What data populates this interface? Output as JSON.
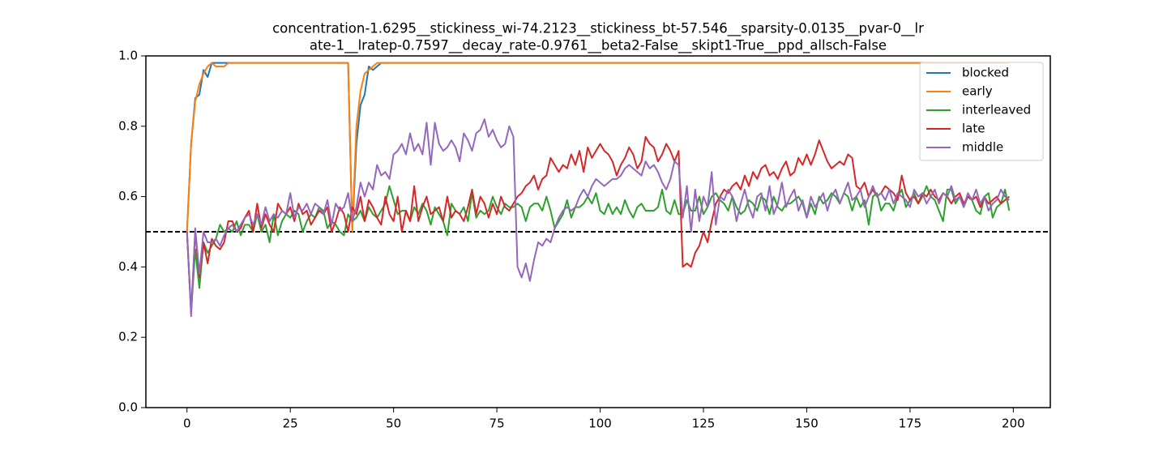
{
  "chart_data": {
    "type": "line",
    "title": [
      "concentration-1.6295__stickiness_wi-74.2123__stickiness_bt-57.546__sparsity-0.0135__pvar-0__lr",
      "ate-1__lratep-0.7597__decay_rate-0.9761__beta2-False__skipt1-True__ppd_allsch-False"
    ],
    "x": [
      0,
      1,
      2,
      3,
      4,
      5,
      6,
      7,
      8,
      9,
      10,
      11,
      12,
      13,
      14,
      15,
      16,
      17,
      18,
      19,
      20,
      21,
      22,
      23,
      24,
      25,
      26,
      27,
      28,
      29,
      30,
      31,
      32,
      33,
      34,
      35,
      36,
      37,
      38,
      39,
      40,
      41,
      42,
      43,
      44,
      45,
      46,
      47,
      48,
      49,
      50,
      51,
      52,
      53,
      54,
      55,
      56,
      57,
      58,
      59,
      60,
      61,
      62,
      63,
      64,
      65,
      66,
      67,
      68,
      69,
      70,
      71,
      72,
      73,
      74,
      75,
      76,
      77,
      78,
      79,
      80,
      81,
      82,
      83,
      84,
      85,
      86,
      87,
      88,
      89,
      90,
      91,
      92,
      93,
      94,
      95,
      96,
      97,
      98,
      99,
      100,
      101,
      102,
      103,
      104,
      105,
      106,
      107,
      108,
      109,
      110,
      111,
      112,
      113,
      114,
      115,
      116,
      117,
      118,
      119,
      120,
      121,
      122,
      123,
      124,
      125,
      126,
      127,
      128,
      129,
      130,
      131,
      132,
      133,
      134,
      135,
      136,
      137,
      138,
      139,
      140,
      141,
      142,
      143,
      144,
      145,
      146,
      147,
      148,
      149,
      150,
      151,
      152,
      153,
      154,
      155,
      156,
      157,
      158,
      159,
      160,
      161,
      162,
      163,
      164,
      165,
      166,
      167,
      168,
      169,
      170,
      171,
      172,
      173,
      174,
      175,
      176,
      177,
      178,
      179,
      180,
      181,
      182,
      183,
      184,
      185,
      186,
      187,
      188,
      189,
      190,
      191,
      192,
      193,
      194,
      195,
      196,
      197,
      198,
      199
    ],
    "series": [
      {
        "name": "blocked",
        "color": "#1f77b4",
        "values": [
          0.5,
          0.75,
          0.88,
          0.89,
          0.96,
          0.94,
          0.98,
          0.98,
          0.98,
          0.98,
          0.98,
          0.98,
          0.98,
          0.98,
          0.98,
          0.98,
          0.98,
          0.98,
          0.98,
          0.98,
          0.98,
          0.98,
          0.98,
          0.98,
          0.98,
          0.98,
          0.98,
          0.98,
          0.98,
          0.98,
          0.98,
          0.98,
          0.98,
          0.98,
          0.98,
          0.98,
          0.98,
          0.98,
          0.98,
          0.98,
          0.5,
          0.75,
          0.86,
          0.89,
          0.97,
          0.96,
          0.97,
          0.98,
          0.98,
          0.98,
          0.98,
          0.98,
          0.98,
          0.98,
          0.98,
          0.98,
          0.98,
          0.98,
          0.98,
          0.98,
          0.98,
          0.98,
          0.98,
          0.98,
          0.98,
          0.98,
          0.98,
          0.98,
          0.98,
          0.98,
          0.98,
          0.98,
          0.98,
          0.98,
          0.98,
          0.98,
          0.98,
          0.98,
          0.98,
          0.98,
          0.98,
          0.98,
          0.98,
          0.98,
          0.98,
          0.98,
          0.98,
          0.98,
          0.98,
          0.98,
          0.98,
          0.98,
          0.98,
          0.98,
          0.98,
          0.98,
          0.98,
          0.98,
          0.98,
          0.98,
          0.98,
          0.98,
          0.98,
          0.98,
          0.98,
          0.98,
          0.98,
          0.98,
          0.98,
          0.98,
          0.98,
          0.98,
          0.98,
          0.98,
          0.98,
          0.98,
          0.98,
          0.98,
          0.98,
          0.98,
          0.98,
          0.98,
          0.98,
          0.98,
          0.98,
          0.98,
          0.98,
          0.98,
          0.98,
          0.98,
          0.98,
          0.98,
          0.98,
          0.98,
          0.98,
          0.98,
          0.98,
          0.98,
          0.98,
          0.98,
          0.98,
          0.98,
          0.98,
          0.98,
          0.98,
          0.98,
          0.98,
          0.98,
          0.98,
          0.98,
          0.98,
          0.98,
          0.98,
          0.98,
          0.98,
          0.98,
          0.98,
          0.98,
          0.98,
          0.98,
          0.98,
          0.98,
          0.98,
          0.98,
          0.98,
          0.98,
          0.98,
          0.98,
          0.98,
          0.98,
          0.98,
          0.98,
          0.98,
          0.98,
          0.98,
          0.98,
          0.98,
          0.98,
          0.98,
          0.98,
          0.98,
          0.98,
          0.98,
          0.98,
          0.98,
          0.98,
          0.98,
          0.98,
          0.98,
          0.98,
          0.98,
          0.98,
          0.98,
          0.98,
          0.98,
          0.98,
          0.98,
          0.98,
          0.98,
          0.98
        ]
      },
      {
        "name": "early",
        "color": "#ff7f0e",
        "values": [
          0.5,
          0.75,
          0.87,
          0.92,
          0.95,
          0.97,
          0.98,
          0.97,
          0.97,
          0.97,
          0.98,
          0.98,
          0.98,
          0.98,
          0.98,
          0.98,
          0.98,
          0.98,
          0.98,
          0.98,
          0.98,
          0.98,
          0.98,
          0.98,
          0.98,
          0.98,
          0.98,
          0.98,
          0.98,
          0.98,
          0.98,
          0.98,
          0.98,
          0.98,
          0.98,
          0.98,
          0.98,
          0.98,
          0.98,
          0.98,
          0.5,
          0.8,
          0.9,
          0.95,
          0.96,
          0.97,
          0.98,
          0.98,
          0.98,
          0.98,
          0.98,
          0.98,
          0.98,
          0.98,
          0.98,
          0.98,
          0.98,
          0.98,
          0.98,
          0.98,
          0.98,
          0.98,
          0.98,
          0.98,
          0.98,
          0.98,
          0.98,
          0.98,
          0.98,
          0.98,
          0.98,
          0.98,
          0.98,
          0.98,
          0.98,
          0.98,
          0.98,
          0.98,
          0.98,
          0.98,
          0.98,
          0.98,
          0.98,
          0.98,
          0.98,
          0.98,
          0.98,
          0.98,
          0.98,
          0.98,
          0.98,
          0.98,
          0.98,
          0.98,
          0.98,
          0.98,
          0.98,
          0.98,
          0.98,
          0.98,
          0.98,
          0.98,
          0.98,
          0.98,
          0.98,
          0.98,
          0.98,
          0.98,
          0.98,
          0.98,
          0.98,
          0.98,
          0.98,
          0.98,
          0.98,
          0.98,
          0.98,
          0.98,
          0.98,
          0.98,
          0.98,
          0.98,
          0.98,
          0.98,
          0.98,
          0.98,
          0.98,
          0.98,
          0.98,
          0.98,
          0.98,
          0.98,
          0.98,
          0.98,
          0.98,
          0.98,
          0.98,
          0.98,
          0.98,
          0.98,
          0.98,
          0.98,
          0.98,
          0.98,
          0.98,
          0.98,
          0.98,
          0.98,
          0.98,
          0.98,
          0.98,
          0.98,
          0.98,
          0.98,
          0.98,
          0.98,
          0.98,
          0.98,
          0.98,
          0.98,
          0.98,
          0.98,
          0.98,
          0.98,
          0.98,
          0.98,
          0.98,
          0.98,
          0.98,
          0.98,
          0.98,
          0.98,
          0.98,
          0.98,
          0.98,
          0.98,
          0.98,
          0.98,
          0.98,
          0.98,
          0.98,
          0.98,
          0.98,
          0.98,
          0.98,
          0.98,
          0.98,
          0.98,
          0.98,
          0.98,
          0.98,
          0.98,
          0.98,
          0.98,
          0.98,
          0.98,
          0.98,
          0.98,
          0.98,
          0.98
        ]
      },
      {
        "name": "interleaved",
        "color": "#2ca02c",
        "values": [
          0.5,
          0.27,
          0.45,
          0.34,
          0.47,
          0.44,
          0.46,
          0.48,
          0.52,
          0.5,
          0.51,
          0.5,
          0.53,
          0.49,
          0.52,
          0.52,
          0.5,
          0.55,
          0.5,
          0.52,
          0.47,
          0.55,
          0.49,
          0.53,
          0.55,
          0.54,
          0.56,
          0.55,
          0.5,
          0.53,
          0.55,
          0.54,
          0.57,
          0.56,
          0.51,
          0.53,
          0.52,
          0.5,
          0.49,
          0.55,
          0.53,
          0.54,
          0.56,
          0.53,
          0.57,
          0.55,
          0.54,
          0.56,
          0.58,
          0.63,
          0.59,
          0.55,
          0.56,
          0.56,
          0.53,
          0.57,
          0.55,
          0.58,
          0.56,
          0.52,
          0.57,
          0.55,
          0.53,
          0.49,
          0.58,
          0.56,
          0.55,
          0.57,
          0.53,
          0.61,
          0.54,
          0.56,
          0.55,
          0.56,
          0.6,
          0.57,
          0.55,
          0.58,
          0.57,
          0.57,
          0.58,
          0.57,
          0.53,
          0.57,
          0.58,
          0.58,
          0.56,
          0.6,
          0.56,
          0.51,
          0.53,
          0.55,
          0.59,
          0.54,
          0.57,
          0.57,
          0.58,
          0.6,
          0.58,
          0.61,
          0.56,
          0.55,
          0.58,
          0.55,
          0.57,
          0.55,
          0.59,
          0.56,
          0.54,
          0.57,
          0.58,
          0.56,
          0.56,
          0.56,
          0.57,
          0.62,
          0.56,
          0.55,
          0.59,
          0.55,
          0.55,
          0.59,
          0.56,
          0.56,
          0.6,
          0.55,
          0.57,
          0.6,
          0.61,
          0.59,
          0.58,
          0.56,
          0.6,
          0.57,
          0.55,
          0.56,
          0.59,
          0.58,
          0.56,
          0.6,
          0.59,
          0.55,
          0.6,
          0.57,
          0.56,
          0.58,
          0.58,
          0.59,
          0.6,
          0.58,
          0.54,
          0.58,
          0.55,
          0.6,
          0.58,
          0.59,
          0.61,
          0.6,
          0.58,
          0.61,
          0.6,
          0.56,
          0.6,
          0.57,
          0.59,
          0.52,
          0.6,
          0.61,
          0.56,
          0.58,
          0.58,
          0.56,
          0.6,
          0.62,
          0.57,
          0.59,
          0.61,
          0.58,
          0.6,
          0.63,
          0.6,
          0.59,
          0.56,
          0.53,
          0.62,
          0.62,
          0.58,
          0.6,
          0.57,
          0.6,
          0.59,
          0.56,
          0.55,
          0.6,
          0.61,
          0.54,
          0.57,
          0.58,
          0.62,
          0.56
        ]
      },
      {
        "name": "late",
        "color": "#d62728",
        "values": [
          0.5,
          0.27,
          0.5,
          0.37,
          0.47,
          0.41,
          0.48,
          0.46,
          0.45,
          0.47,
          0.53,
          0.53,
          0.5,
          0.51,
          0.54,
          0.56,
          0.5,
          0.58,
          0.51,
          0.55,
          0.52,
          0.5,
          0.58,
          0.56,
          0.55,
          0.57,
          0.53,
          0.58,
          0.55,
          0.56,
          0.52,
          0.54,
          0.56,
          0.55,
          0.57,
          0.5,
          0.53,
          0.57,
          0.55,
          0.5,
          0.57,
          0.55,
          0.6,
          0.53,
          0.59,
          0.57,
          0.54,
          0.52,
          0.6,
          0.55,
          0.53,
          0.6,
          0.5,
          0.56,
          0.53,
          0.63,
          0.53,
          0.57,
          0.6,
          0.55,
          0.56,
          0.57,
          0.53,
          0.6,
          0.54,
          0.56,
          0.55,
          0.53,
          0.57,
          0.62,
          0.55,
          0.6,
          0.58,
          0.54,
          0.58,
          0.55,
          0.6,
          0.57,
          0.56,
          0.58,
          0.6,
          0.61,
          0.63,
          0.64,
          0.66,
          0.62,
          0.65,
          0.66,
          0.71,
          0.69,
          0.67,
          0.69,
          0.68,
          0.72,
          0.69,
          0.73,
          0.67,
          0.74,
          0.71,
          0.73,
          0.75,
          0.73,
          0.72,
          0.7,
          0.66,
          0.69,
          0.71,
          0.74,
          0.72,
          0.68,
          0.7,
          0.77,
          0.75,
          0.74,
          0.7,
          0.72,
          0.75,
          0.73,
          0.7,
          0.73,
          0.4,
          0.41,
          0.4,
          0.44,
          0.46,
          0.5,
          0.47,
          0.53,
          0.58,
          0.6,
          0.62,
          0.61,
          0.63,
          0.64,
          0.62,
          0.66,
          0.63,
          0.67,
          0.65,
          0.68,
          0.69,
          0.66,
          0.67,
          0.65,
          0.68,
          0.7,
          0.66,
          0.67,
          0.71,
          0.69,
          0.72,
          0.69,
          0.72,
          0.76,
          0.73,
          0.7,
          0.68,
          0.69,
          0.7,
          0.69,
          0.72,
          0.71,
          0.63,
          0.62,
          0.64,
          0.6,
          0.62,
          0.6,
          0.61,
          0.63,
          0.62,
          0.61,
          0.59,
          0.66,
          0.61,
          0.59,
          0.6,
          0.58,
          0.61,
          0.6,
          0.62,
          0.6,
          0.59,
          0.61,
          0.6,
          0.58,
          0.6,
          0.61,
          0.58,
          0.6,
          0.59,
          0.6,
          0.57,
          0.6,
          0.58,
          0.59,
          0.6,
          0.58,
          0.59,
          0.6
        ]
      },
      {
        "name": "middle",
        "color": "#9467bd",
        "values": [
          0.5,
          0.26,
          0.51,
          0.38,
          0.5,
          0.47,
          0.47,
          0.48,
          0.46,
          0.49,
          0.51,
          0.52,
          0.5,
          0.52,
          0.54,
          0.55,
          0.52,
          0.55,
          0.52,
          0.57,
          0.53,
          0.55,
          0.54,
          0.56,
          0.55,
          0.61,
          0.54,
          0.57,
          0.56,
          0.58,
          0.55,
          0.58,
          0.57,
          0.55,
          0.59,
          0.52,
          0.58,
          0.56,
          0.57,
          0.61,
          0.53,
          0.57,
          0.64,
          0.6,
          0.64,
          0.62,
          0.69,
          0.66,
          0.67,
          0.65,
          0.72,
          0.73,
          0.75,
          0.72,
          0.78,
          0.73,
          0.75,
          0.72,
          0.81,
          0.69,
          0.81,
          0.75,
          0.73,
          0.74,
          0.76,
          0.74,
          0.7,
          0.78,
          0.76,
          0.73,
          0.78,
          0.79,
          0.82,
          0.77,
          0.79,
          0.76,
          0.74,
          0.75,
          0.8,
          0.77,
          0.4,
          0.37,
          0.41,
          0.36,
          0.42,
          0.47,
          0.46,
          0.48,
          0.47,
          0.51,
          0.54,
          0.56,
          0.57,
          0.56,
          0.57,
          0.6,
          0.62,
          0.6,
          0.63,
          0.65,
          0.64,
          0.63,
          0.64,
          0.65,
          0.65,
          0.66,
          0.68,
          0.69,
          0.68,
          0.67,
          0.66,
          0.7,
          0.68,
          0.69,
          0.67,
          0.64,
          0.62,
          0.65,
          0.7,
          0.69,
          0.54,
          0.63,
          0.5,
          0.62,
          0.53,
          0.6,
          0.57,
          0.67,
          0.52,
          0.6,
          0.59,
          0.62,
          0.6,
          0.53,
          0.58,
          0.62,
          0.57,
          0.54,
          0.6,
          0.61,
          0.56,
          0.63,
          0.55,
          0.58,
          0.64,
          0.57,
          0.6,
          0.62,
          0.56,
          0.59,
          0.54,
          0.6,
          0.57,
          0.59,
          0.61,
          0.56,
          0.6,
          0.62,
          0.58,
          0.61,
          0.64,
          0.59,
          0.6,
          0.62,
          0.57,
          0.6,
          0.63,
          0.6,
          0.61,
          0.59,
          0.62,
          0.58,
          0.61,
          0.6,
          0.59,
          0.57,
          0.62,
          0.6,
          0.61,
          0.58,
          0.6,
          0.62,
          0.58,
          0.61,
          0.6,
          0.63,
          0.59,
          0.6,
          0.57,
          0.61,
          0.59,
          0.62,
          0.58,
          0.6,
          0.56,
          0.58,
          0.59,
          0.62,
          0.6,
          0.59
        ]
      }
    ],
    "hline": {
      "value": 0.5,
      "color": "#000000"
    },
    "xlim": [
      -9.95,
      208.95
    ],
    "xticks": [
      0,
      25,
      50,
      75,
      100,
      125,
      150,
      175,
      200
    ],
    "ylim": [
      0,
      1
    ],
    "yticks": [
      {
        "value": 0,
        "label": "0.0"
      },
      0.2,
      0.4,
      0.6,
      0.8,
      {
        "value": 1,
        "label": "1.0"
      }
    ],
    "legend": "upper right",
    "grid": false
  }
}
